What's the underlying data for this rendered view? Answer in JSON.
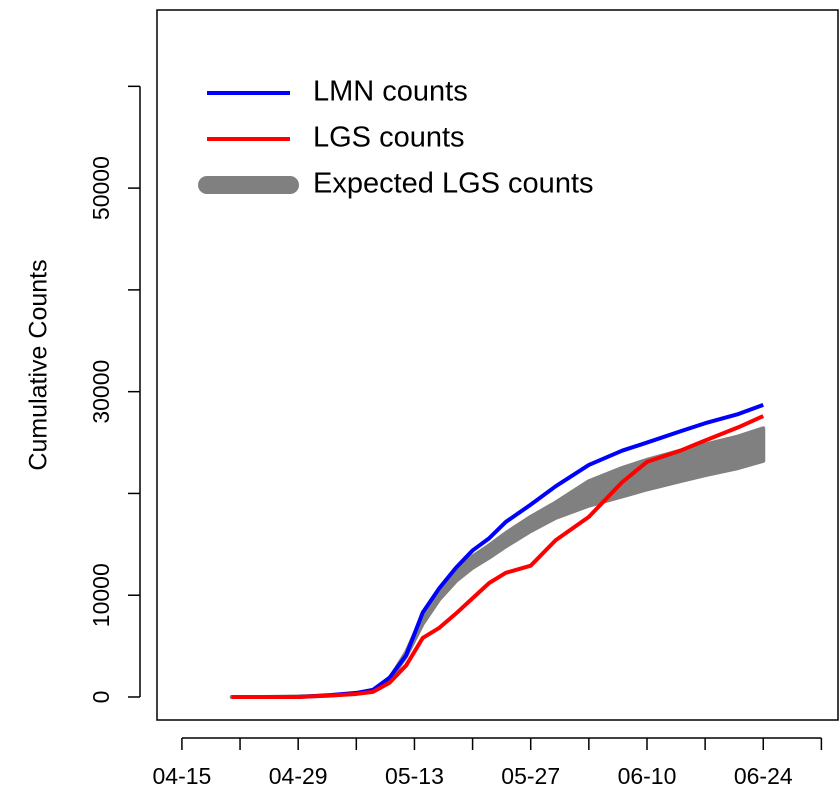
{
  "chart_data": {
    "type": "line",
    "y_label": "Cumulative Counts",
    "x": [
      "04-21",
      "04-25",
      "04-29",
      "05-03",
      "05-06",
      "05-08",
      "05-10",
      "05-12",
      "05-14",
      "05-16",
      "05-18",
      "05-20",
      "05-22",
      "05-24",
      "05-27",
      "05-30",
      "06-03",
      "06-07",
      "06-10",
      "06-14",
      "06-17",
      "06-21",
      "06-24"
    ],
    "series": [
      {
        "name": "LMN counts",
        "color": "#0000ff",
        "values": [
          0,
          0,
          0,
          200,
          400,
          700,
          1900,
          4100,
          8300,
          10700,
          12700,
          14400,
          15600,
          17200,
          18900,
          20700,
          22800,
          24200,
          25000,
          26100,
          26900,
          27800,
          28700
        ]
      },
      {
        "name": "LGS counts",
        "color": "#ff0000",
        "values": [
          0,
          0,
          0,
          150,
          300,
          500,
          1400,
          3100,
          5800,
          6800,
          8200,
          9700,
          11200,
          12200,
          12900,
          15400,
          17700,
          21100,
          23100,
          24200,
          25200,
          26500,
          27600
        ]
      },
      {
        "name": "Expected LGS counts",
        "color": "#808080",
        "lower": [
          0,
          0,
          50,
          150,
          350,
          600,
          1600,
          4000,
          7200,
          9600,
          11400,
          12700,
          13700,
          14800,
          16300,
          17600,
          18800,
          19700,
          20400,
          21200,
          21800,
          22500,
          23200
        ],
        "upper": [
          0,
          0,
          50,
          150,
          350,
          600,
          1800,
          4400,
          8000,
          10600,
          12400,
          13800,
          14900,
          16100,
          17700,
          19100,
          21200,
          22500,
          23300,
          24200,
          24800,
          25600,
          26400
        ]
      }
    ],
    "xlim": [
      "04-12",
      "07-03"
    ],
    "xticks": [
      "04-15",
      "04-29",
      "05-13",
      "05-27",
      "06-10",
      "06-24"
    ],
    "xminor_ticks": [
      "04-22",
      "05-06",
      "05-20",
      "06-03",
      "06-17",
      "07-01"
    ],
    "ylim": [
      -2260,
      67500
    ],
    "yticks": [
      0,
      10000,
      30000,
      50000
    ],
    "yminor_ticks": [
      20000,
      40000,
      60000
    ],
    "legend": "top-left"
  }
}
